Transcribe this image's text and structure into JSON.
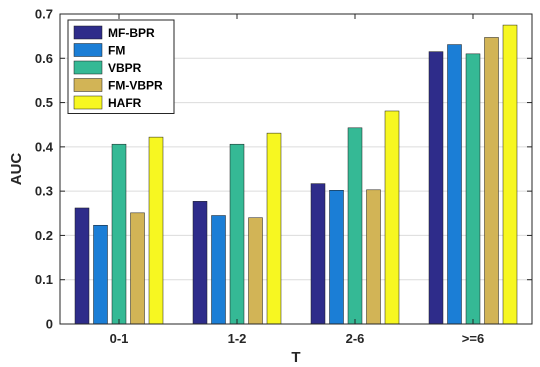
{
  "chart_data": {
    "type": "bar",
    "title": "",
    "xlabel": "T",
    "ylabel": "AUC",
    "ylim": [
      0,
      0.7
    ],
    "yticks": [
      "0",
      "0.1",
      "0.2",
      "0.3",
      "0.4",
      "0.5",
      "0.6",
      "0.7"
    ],
    "categories": [
      "0-1",
      "1-2",
      "2-6",
      ">=6"
    ],
    "grid": true,
    "legend_position": "top-left",
    "series": [
      {
        "name": "MF-BPR",
        "color": "#2e2c8a",
        "values": [
          0.262,
          0.277,
          0.317,
          0.615
        ]
      },
      {
        "name": "FM",
        "color": "#1b7ed6",
        "values": [
          0.223,
          0.245,
          0.302,
          0.631
        ]
      },
      {
        "name": "VBPR",
        "color": "#35b995",
        "values": [
          0.406,
          0.406,
          0.443,
          0.61
        ]
      },
      {
        "name": "FM-VBPR",
        "color": "#d2b456",
        "values": [
          0.251,
          0.24,
          0.303,
          0.647
        ]
      },
      {
        "name": "HAFR",
        "color": "#f7f721",
        "values": [
          0.422,
          0.431,
          0.481,
          0.675
        ]
      }
    ]
  }
}
